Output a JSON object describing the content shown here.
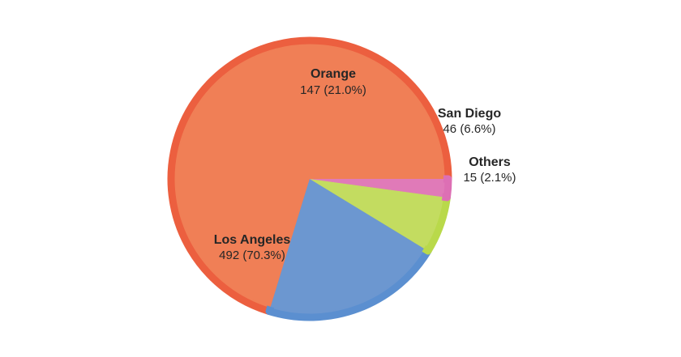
{
  "chart_data": {
    "type": "pie",
    "slices": [
      {
        "name": "Los Angeles",
        "value": 492,
        "value_label": "492 (70.3%)",
        "color": "#f07f56",
        "edge": "#ec5f3f"
      },
      {
        "name": "Orange",
        "value": 147,
        "value_label": "147 (21.0%)",
        "color": "#6c97d0",
        "edge": "#5b8fd0"
      },
      {
        "name": "San Diego",
        "value": 46,
        "value_label": "46 (6.6%)",
        "color": "#c3dc60",
        "edge": "#b9d94a"
      },
      {
        "name": "Others",
        "value": 15,
        "value_label": "15 (2.1%)",
        "color": "#e07ab8",
        "edge": "#dd6fb4"
      }
    ],
    "start_angle_deg": 0,
    "direction": "counterclockwise",
    "legend": "none"
  }
}
